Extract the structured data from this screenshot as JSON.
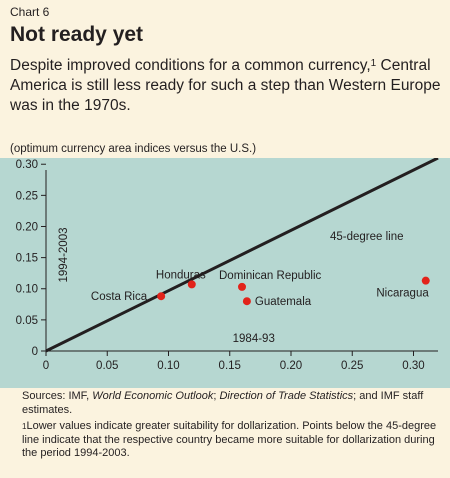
{
  "header": {
    "chart_label": "Chart 6",
    "title": "Not ready yet",
    "subtitle_part1": "Despite improved conditions for a common currency,",
    "subtitle_sup": "1",
    "subtitle_part2": " Central America is still less ready for such a step than Western Europe was in the 1970s.",
    "note": "(optimum currency area indices versus the U.S.)"
  },
  "chart_data": {
    "type": "scatter",
    "title": "Not ready yet",
    "xlabel": "1984-93",
    "ylabel": "1994-2003",
    "xlim": [
      0,
      0.32
    ],
    "ylim": [
      0,
      0.31
    ],
    "x_ticks": [
      "0",
      "0.05",
      "0.10",
      "0.15",
      "0.20",
      "0.25",
      "0.30"
    ],
    "x_tick_values": [
      0,
      0.05,
      0.1,
      0.15,
      0.2,
      0.25,
      0.3
    ],
    "y_ticks": [
      "0",
      "0.05",
      "0.10",
      "0.15",
      "0.20",
      "0.25",
      "0.30"
    ],
    "y_tick_values": [
      0,
      0.05,
      0.1,
      0.15,
      0.2,
      0.25,
      0.3
    ],
    "grid": false,
    "reference_line": {
      "label": "45-degree line",
      "slope": 1
    },
    "points": [
      {
        "label": "Costa Rica",
        "x": 0.094,
        "y": 0.088
      },
      {
        "label": "Honduras",
        "x": 0.119,
        "y": 0.107
      },
      {
        "label": "Dominican Republic",
        "x": 0.16,
        "y": 0.103
      },
      {
        "label": "Guatemala",
        "x": 0.164,
        "y": 0.08
      },
      {
        "label": "Nicaragua",
        "x": 0.31,
        "y": 0.113
      }
    ],
    "colors": {
      "plot_bg": "#b6d7d1",
      "point": "#e2231a",
      "line": "#231f20"
    }
  },
  "footer": {
    "sources_prefix": "Sources: IMF, ",
    "sources_weo": "World Economic Outlook",
    "sources_sep": "; ",
    "sources_dots": "Direction of Trade Statistics",
    "sources_suffix": "; and IMF staff estimates.",
    "footnote_mark": "1",
    "footnote_text": "Lower values indicate greater suitability for dollarization. Points below the 45-degree line indicate that the respective country became more suitable for dollarization during the period 1994-2003."
  }
}
